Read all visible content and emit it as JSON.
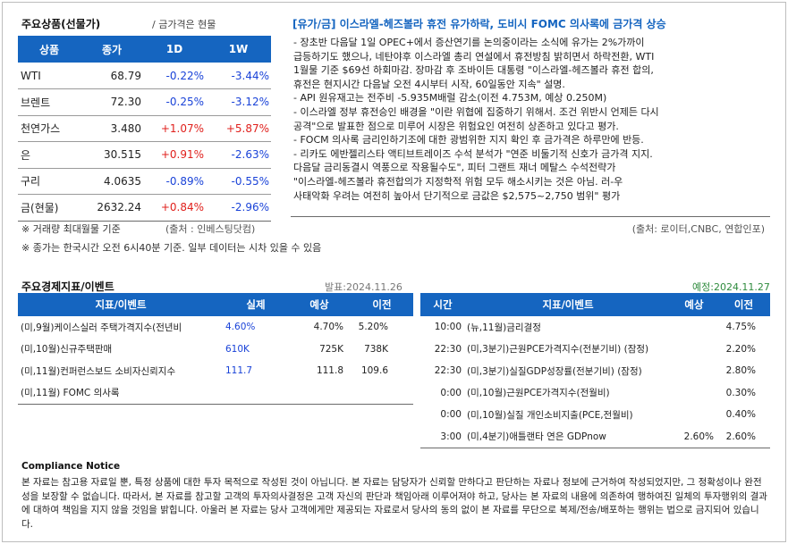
{
  "commodities": {
    "title": "주요상품(선물가)",
    "note": "/ 금가격은 현물",
    "headers": [
      "상품",
      "종가",
      "1D",
      "1W"
    ],
    "rows": [
      {
        "name": "WTI",
        "close": "68.79",
        "d1": "-0.22%",
        "w1": "-3.44%",
        "d1_dir": "down",
        "w1_dir": "down"
      },
      {
        "name": "브렌트",
        "close": "72.30",
        "d1": "-0.25%",
        "w1": "-3.12%",
        "d1_dir": "down",
        "w1_dir": "down"
      },
      {
        "name": "천연가스",
        "close": "3.480",
        "d1": "+1.07%",
        "w1": "+5.87%",
        "d1_dir": "up",
        "w1_dir": "up"
      },
      {
        "name": "은",
        "close": "30.515",
        "d1": "+0.91%",
        "w1": "-2.63%",
        "d1_dir": "up",
        "w1_dir": "down"
      },
      {
        "name": "구리",
        "close": "4.0635",
        "d1": "-0.89%",
        "w1": "-0.55%",
        "d1_dir": "down",
        "w1_dir": "down"
      },
      {
        "name": "금(현물)",
        "close": "2632.24",
        "d1": "+0.84%",
        "w1": "-2.96%",
        "d1_dir": "up",
        "w1_dir": "down"
      }
    ],
    "footnote_left": "※ 거래량 최대월물 기준",
    "footnote_source": "(출처 : 인베스팅닷컴)",
    "footnote_time": "※ 종가는 한국시간 오전 6시40분 기준. 일부 데이터는 시차 있을 수 있음"
  },
  "news": {
    "title": "[유가/금] 이스라엘-헤즈볼라 휴전 유가하락, 도비시 FOMC 의사록에 금가격 상승",
    "body": "- 장초반 다음달 1일 OPEC+에서 증산연기를 논의중이라는 소식에 유가는 2%가까이\n급등하기도 했으나, 네탄야후 이스라엘 총리 연설에서 휴전방침 밝히면서 하락전환, WTI\n1월물 기준 $69선 하회마감. 장마감 후 조바이든 대통령 \"이스라엘-헤즈볼라 휴전 합의,\n휴전은 현지시간 다음날 오전 4시부터 시작, 60일동안 지속\" 설명.\n- API 원유재고는 전주비 -5.935M배럴 감소(이전 4.753M, 예상 0.250M)\n- 이스라엘 정부 휴전승인 배경을 \"이란 위협에 집중하기 위해서. 조건 위반시 언제든 다시\n공격\"으로 발표한 점으로 미루어 시장은 위험요인 여전히 상존하고 있다고 평가.\n- FOCM 의사록 금리인하기조에 대한 광범위한 지지 확인 후 금가격은 하루만에 반등.\n- 리카도 에반젤리스타 액티브트레이즈 수석 분석가 \"연준 비둘기적 신호가 금가격 지지.\n다음달 금리동결시 역풍으로 작용될수도\", 피터 그랜트 재너 메탈스 수석전략가\n\"이스라엘-헤즈볼라 휴전합의가 지정학적 위험 모두 해소시키는 것은 아님. 러-우\n사태악화 우려는 여전히 높아서 단기적으로 금값은 $2,575~2,750 범위\" 평가",
    "source": "(출처: 로이터,CNBC, 연합인포)"
  },
  "indicators": {
    "title": "주요경제지표/이벤트",
    "left_date": "발표:2024.11.26",
    "right_date": "예정:2024.11.27",
    "left_headers": [
      "지표/이벤트",
      "실제",
      "예상",
      "이전"
    ],
    "left_rows": [
      {
        "event": "(미,9월)케이스실러 주택가격지수(전년비",
        "actual": "4.60%",
        "forecast": "4.70%",
        "previous": "5.20%"
      },
      {
        "event": "(미,10월)신규주택판매",
        "actual": "610K",
        "forecast": "725K",
        "previous": "738K"
      },
      {
        "event": "(미,11월)컨퍼런스보드 소비자신뢰지수",
        "actual": "111.7",
        "forecast": "111.8",
        "previous": "109.6"
      },
      {
        "event": "(미,11월) FOMC 의사록",
        "actual": "",
        "forecast": "",
        "previous": ""
      }
    ],
    "right_headers": [
      "시간",
      "지표/이벤트",
      "예상",
      "이전"
    ],
    "right_rows": [
      {
        "time": "10:00",
        "event": "(뉴,11월)금리결정",
        "forecast": "",
        "previous": "4.75%"
      },
      {
        "time": "22:30",
        "event": "(미,3분기)근원PCE가격지수(전분기비) (잠정)",
        "forecast": "",
        "previous": "2.20%"
      },
      {
        "time": "22:30",
        "event": "(미,3분기)실질GDP성장률(전분기비) (잠정)",
        "forecast": "",
        "previous": "2.80%"
      },
      {
        "time": "0:00",
        "event": "(미,10월)근원PCE가격지수(전월비)",
        "forecast": "",
        "previous": "0.30%"
      },
      {
        "time": "0:00",
        "event": "(미,10월)실질 개인소비지출(PCE,전월비)",
        "forecast": "",
        "previous": "0.40%"
      },
      {
        "time": "3:00",
        "event": "(미,4분기)애틀랜타 연은 GDPnow",
        "forecast": "2.60%",
        "previous": "2.60%"
      }
    ]
  },
  "compliance": {
    "title": "Compliance Notice",
    "text": "본 자료는 참고용 자료일 뿐, 특정 상품에 대한 투자 목적으로 작성된 것이 아닙니다. 본 자료는 담당자가 신뢰할 만하다고 판단하는 자료나 정보에 근거하여 작성되었지만, 그 정확성이나 완전성을 보장할 수 없습니다. 따라서, 본 자료를 참고할 고객의 투자의사결정은 고객 자신의 판단과 책임아래 이루어져야 하고, 당사는 본 자료의 내용에 의존하여 행하여진 일체의 투자행위의 결과에 대하여 책임을 지지 않을 것임을 밝힙니다. 아울러 본 자료는 당사 고객에게만 제공되는 자료로서 당사의 동의 없이 본 자료를 무단으로 복제/전송/배포하는 행위는 법으로 금지되어 있습니다."
  }
}
